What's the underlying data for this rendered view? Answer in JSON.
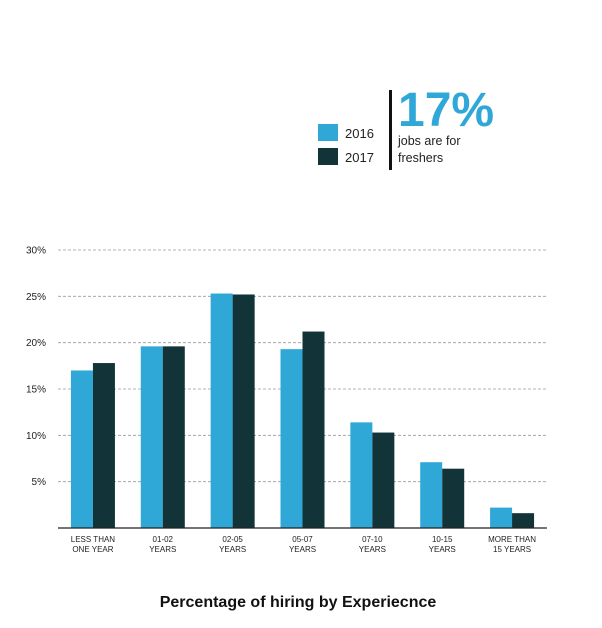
{
  "chart_data": {
    "type": "bar",
    "title": "Percentage of hiring by Experiecnce",
    "categories": [
      [
        "LESS THAN",
        "ONE YEAR"
      ],
      [
        "01-02",
        "YEARS"
      ],
      [
        "02-05",
        "YEARS"
      ],
      [
        "05-07",
        "YEARS"
      ],
      [
        "07-10",
        "YEARS"
      ],
      [
        "10-15",
        "YEARS"
      ],
      [
        "MORE THAN",
        "15 YEARS"
      ]
    ],
    "series": [
      {
        "name": "2016",
        "color": "#2fa8d8",
        "values": [
          17.0,
          19.6,
          25.3,
          19.3,
          11.4,
          7.1,
          2.2
        ]
      },
      {
        "name": "2017",
        "color": "#123338",
        "values": [
          17.8,
          19.6,
          25.2,
          21.2,
          10.3,
          6.4,
          1.6
        ]
      }
    ],
    "y_ticks": [
      "30%",
      "25%",
      "20%",
      "15%",
      "10%",
      "5%"
    ],
    "y_tick_values": [
      30,
      25,
      20,
      15,
      10,
      5
    ],
    "ylim": [
      0,
      30
    ],
    "xlabel": "",
    "ylabel": "",
    "grid": "dashed",
    "legend": "top-right"
  },
  "callout": {
    "value": "17%",
    "line1": "jobs are for",
    "line2": "freshers",
    "color": "#2fa8d8"
  }
}
